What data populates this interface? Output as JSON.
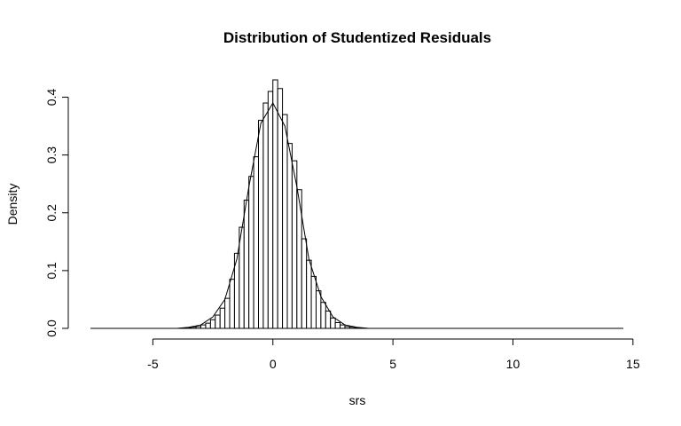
{
  "chart_data": {
    "type": "histogram",
    "title": "Distribution of Studentized Residuals",
    "xlabel": "srs",
    "ylabel": "Density",
    "xlim": [
      -7.6,
      14.6
    ],
    "ylim": [
      0,
      0.43
    ],
    "x_ticks": [
      "-5",
      "0",
      "5",
      "10",
      "15"
    ],
    "y_ticks": [
      "0.0",
      "0.1",
      "0.2",
      "0.3",
      "0.4"
    ],
    "grid": false,
    "bin_width": 0.2,
    "bins": [
      {
        "x0": -3.6,
        "density": 0.001
      },
      {
        "x0": -3.4,
        "density": 0.002
      },
      {
        "x0": -3.2,
        "density": 0.003
      },
      {
        "x0": -3.0,
        "density": 0.006
      },
      {
        "x0": -2.8,
        "density": 0.009
      },
      {
        "x0": -2.6,
        "density": 0.015
      },
      {
        "x0": -2.4,
        "density": 0.023
      },
      {
        "x0": -2.2,
        "density": 0.035
      },
      {
        "x0": -2.0,
        "density": 0.052
      },
      {
        "x0": -1.8,
        "density": 0.085
      },
      {
        "x0": -1.6,
        "density": 0.13
      },
      {
        "x0": -1.4,
        "density": 0.175
      },
      {
        "x0": -1.2,
        "density": 0.222
      },
      {
        "x0": -1.0,
        "density": 0.263
      },
      {
        "x0": -0.8,
        "density": 0.297
      },
      {
        "x0": -0.6,
        "density": 0.36
      },
      {
        "x0": -0.4,
        "density": 0.39
      },
      {
        "x0": -0.2,
        "density": 0.41
      },
      {
        "x0": 0.0,
        "density": 0.43
      },
      {
        "x0": 0.2,
        "density": 0.415
      },
      {
        "x0": 0.4,
        "density": 0.37
      },
      {
        "x0": 0.6,
        "density": 0.32
      },
      {
        "x0": 0.8,
        "density": 0.29
      },
      {
        "x0": 1.0,
        "density": 0.24
      },
      {
        "x0": 1.2,
        "density": 0.155
      },
      {
        "x0": 1.4,
        "density": 0.118
      },
      {
        "x0": 1.6,
        "density": 0.09
      },
      {
        "x0": 1.8,
        "density": 0.065
      },
      {
        "x0": 2.0,
        "density": 0.045
      },
      {
        "x0": 2.2,
        "density": 0.03
      },
      {
        "x0": 2.4,
        "density": 0.018
      },
      {
        "x0": 2.6,
        "density": 0.01
      },
      {
        "x0": 2.8,
        "density": 0.006
      },
      {
        "x0": 3.0,
        "density": 0.003
      },
      {
        "x0": 3.2,
        "density": 0.002
      },
      {
        "x0": 3.4,
        "density": 0.001
      },
      {
        "x0": 3.6,
        "density": 0.0005
      }
    ],
    "density_curve": {
      "x": [
        -7.6,
        -4.0,
        -3.5,
        -3.0,
        -2.5,
        -2.0,
        -1.5,
        -1.0,
        -0.5,
        0.0,
        0.5,
        1.0,
        1.5,
        2.0,
        2.5,
        3.0,
        3.5,
        4.0,
        14.6
      ],
      "y": [
        0.0,
        0.0,
        0.002,
        0.006,
        0.02,
        0.05,
        0.12,
        0.245,
        0.355,
        0.39,
        0.35,
        0.245,
        0.12,
        0.055,
        0.02,
        0.006,
        0.002,
        0.0,
        0.0
      ]
    }
  }
}
